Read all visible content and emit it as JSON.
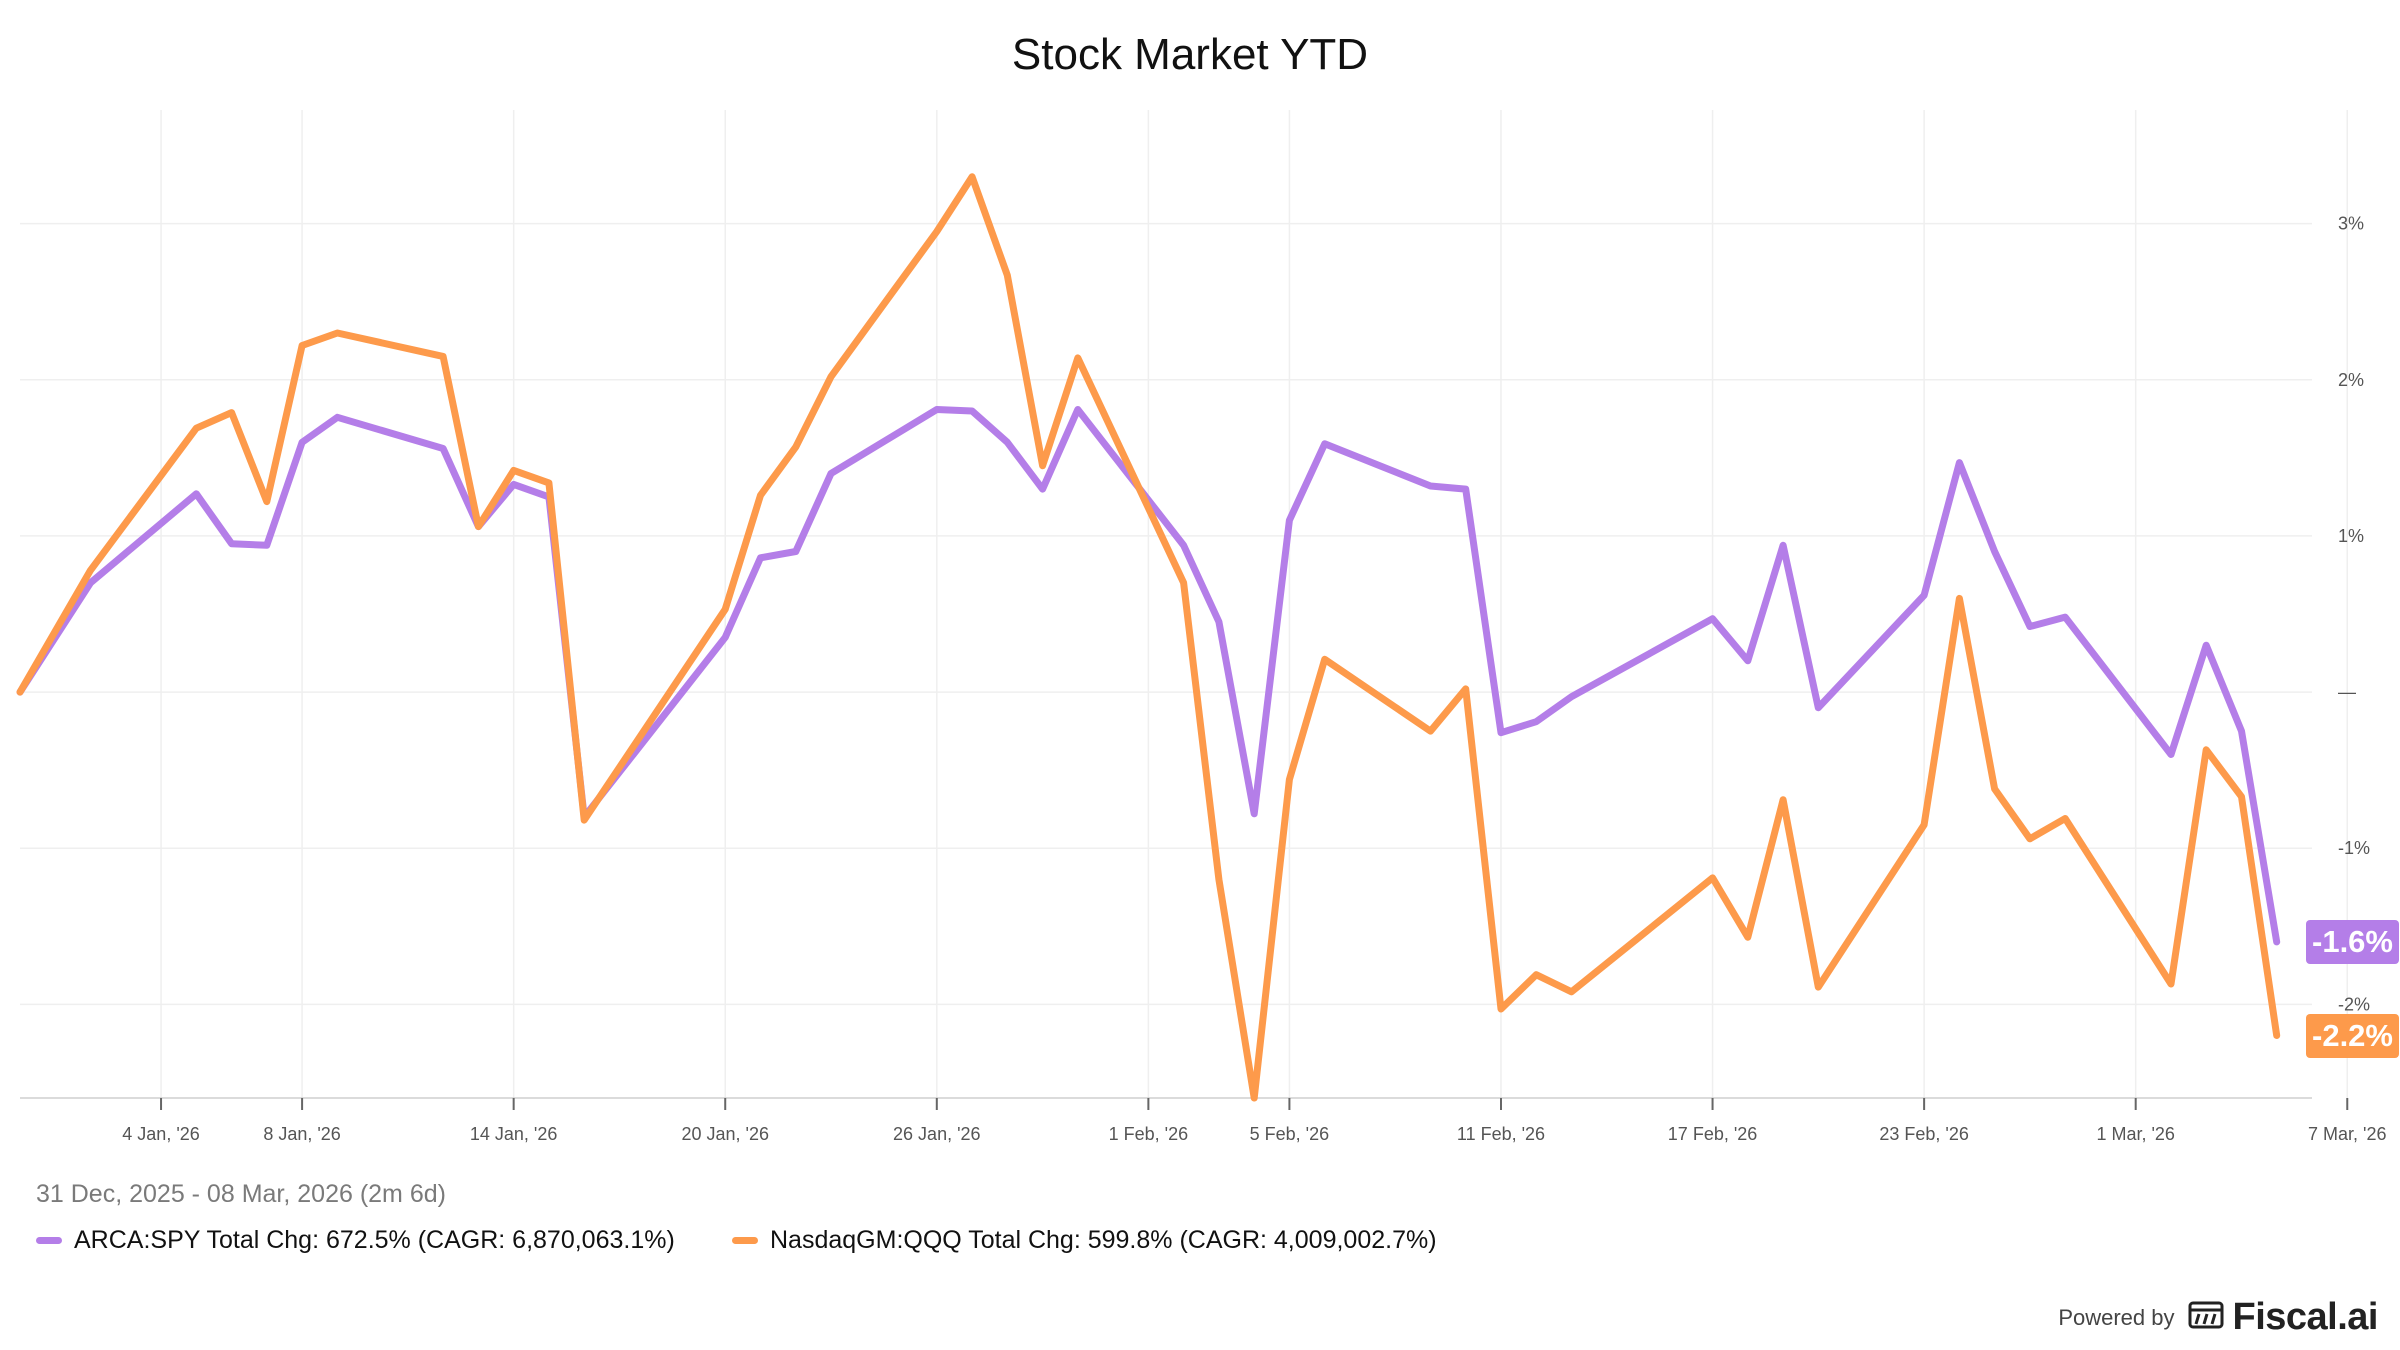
{
  "title": "Stock Market YTD",
  "date_range": "31 Dec, 2025 - 08 Mar, 2026 (2m 6d)",
  "powered_by": "Powered by",
  "brand": "Fiscal.ai",
  "colors": {
    "spy": "#b47ee8",
    "qqq": "#fd9a4b",
    "grid": "#efefef",
    "axis": "#555555"
  },
  "chart_data": {
    "type": "line",
    "title": "Stock Market YTD",
    "x_tick_labels": [
      "4 Jan, '26",
      "8 Jan, '26",
      "14 Jan, '26",
      "20 Jan, '26",
      "26 Jan, '26",
      "1 Feb, '26",
      "5 Feb, '26",
      "11 Feb, '26",
      "17 Feb, '26",
      "23 Feb, '26",
      "1 Mar, '26",
      "7 Mar, '26"
    ],
    "y_ticks": [
      {
        "value": 3,
        "label": "3%"
      },
      {
        "value": 2,
        "label": "2%"
      },
      {
        "value": 1,
        "label": "1%"
      },
      {
        "value": 0,
        "label": "—"
      },
      {
        "value": -1,
        "label": "-1%"
      },
      {
        "value": -2,
        "label": "-2%"
      }
    ],
    "ylim": [
      -2.6,
      3.6
    ],
    "grid": true,
    "legend_position": "bottom-left",
    "series": [
      {
        "name": "ARCA:SPY",
        "legend": "ARCA:SPY Total Chg: 672.5% (CAGR: 6,870,063.1%)",
        "end_label": "-1.6%",
        "color": "#b47ee8",
        "points": [
          [
            "2025-12-31",
            0.0
          ],
          [
            "2026-01-02",
            0.7
          ],
          [
            "2026-01-05",
            1.27
          ],
          [
            "2026-01-06",
            0.95
          ],
          [
            "2026-01-07",
            0.94
          ],
          [
            "2026-01-08",
            1.6
          ],
          [
            "2026-01-09",
            1.76
          ],
          [
            "2026-01-12",
            1.56
          ],
          [
            "2026-01-13",
            1.06
          ],
          [
            "2026-01-14",
            1.33
          ],
          [
            "2026-01-15",
            1.25
          ],
          [
            "2026-01-16",
            -0.8
          ],
          [
            "2026-01-20",
            0.35
          ],
          [
            "2026-01-21",
            0.86
          ],
          [
            "2026-01-22",
            0.9
          ],
          [
            "2026-01-23",
            1.4
          ],
          [
            "2026-01-26",
            1.81
          ],
          [
            "2026-01-27",
            1.8
          ],
          [
            "2026-01-28",
            1.6
          ],
          [
            "2026-01-29",
            1.3
          ],
          [
            "2026-01-30",
            1.81
          ],
          [
            "2026-02-02",
            0.94
          ],
          [
            "2026-02-03",
            0.45
          ],
          [
            "2026-02-04",
            -0.78
          ],
          [
            "2026-02-05",
            1.1
          ],
          [
            "2026-02-06",
            1.59
          ],
          [
            "2026-02-09",
            1.32
          ],
          [
            "2026-02-10",
            1.3
          ],
          [
            "2026-02-11",
            -0.26
          ],
          [
            "2026-02-12",
            -0.19
          ],
          [
            "2026-02-13",
            -0.03
          ],
          [
            "2026-02-17",
            0.47
          ],
          [
            "2026-02-18",
            0.2
          ],
          [
            "2026-02-19",
            0.94
          ],
          [
            "2026-02-20",
            -0.1
          ],
          [
            "2026-02-23",
            0.62
          ],
          [
            "2026-02-24",
            1.47
          ],
          [
            "2026-02-25",
            0.9
          ],
          [
            "2026-02-26",
            0.42
          ],
          [
            "2026-02-27",
            0.48
          ],
          [
            "2026-03-02",
            -0.4
          ],
          [
            "2026-03-03",
            0.3
          ],
          [
            "2026-03-04",
            -0.25
          ],
          [
            "2026-03-05",
            -1.6
          ]
        ]
      },
      {
        "name": "NasdaqGM:QQQ",
        "legend": "NasdaqGM:QQQ Total Chg: 599.8% (CAGR: 4,009,002.7%)",
        "end_label": "-2.2%",
        "color": "#fd9a4b",
        "points": [
          [
            "2025-12-31",
            0.0
          ],
          [
            "2026-01-02",
            0.78
          ],
          [
            "2026-01-05",
            1.69
          ],
          [
            "2026-01-06",
            1.79
          ],
          [
            "2026-01-07",
            1.22
          ],
          [
            "2026-01-08",
            2.22
          ],
          [
            "2026-01-09",
            2.3
          ],
          [
            "2026-01-12",
            2.15
          ],
          [
            "2026-01-13",
            1.06
          ],
          [
            "2026-01-14",
            1.42
          ],
          [
            "2026-01-15",
            1.34
          ],
          [
            "2026-01-16",
            -0.82
          ],
          [
            "2026-01-20",
            0.53
          ],
          [
            "2026-01-21",
            1.26
          ],
          [
            "2026-01-22",
            1.57
          ],
          [
            "2026-01-23",
            2.02
          ],
          [
            "2026-01-26",
            2.95
          ],
          [
            "2026-01-27",
            3.3
          ],
          [
            "2026-01-28",
            2.67
          ],
          [
            "2026-01-29",
            1.45
          ],
          [
            "2026-01-30",
            2.14
          ],
          [
            "2026-02-02",
            0.7
          ],
          [
            "2026-02-03",
            -1.2
          ],
          [
            "2026-02-04",
            -2.6
          ],
          [
            "2026-02-05",
            -0.56
          ],
          [
            "2026-02-06",
            0.21
          ],
          [
            "2026-02-09",
            -0.25
          ],
          [
            "2026-02-10",
            0.02
          ],
          [
            "2026-02-11",
            -2.03
          ],
          [
            "2026-02-12",
            -1.81
          ],
          [
            "2026-02-13",
            -1.92
          ],
          [
            "2026-02-17",
            -1.19
          ],
          [
            "2026-02-18",
            -1.57
          ],
          [
            "2026-02-19",
            -0.69
          ],
          [
            "2026-02-20",
            -1.89
          ],
          [
            "2026-02-23",
            -0.85
          ],
          [
            "2026-02-24",
            0.6
          ],
          [
            "2026-02-25",
            -0.62
          ],
          [
            "2026-02-26",
            -0.94
          ],
          [
            "2026-02-27",
            -0.81
          ],
          [
            "2026-03-02",
            -1.87
          ],
          [
            "2026-03-03",
            -0.37
          ],
          [
            "2026-03-04",
            -0.67
          ],
          [
            "2026-03-05",
            -2.2
          ]
        ]
      }
    ]
  }
}
